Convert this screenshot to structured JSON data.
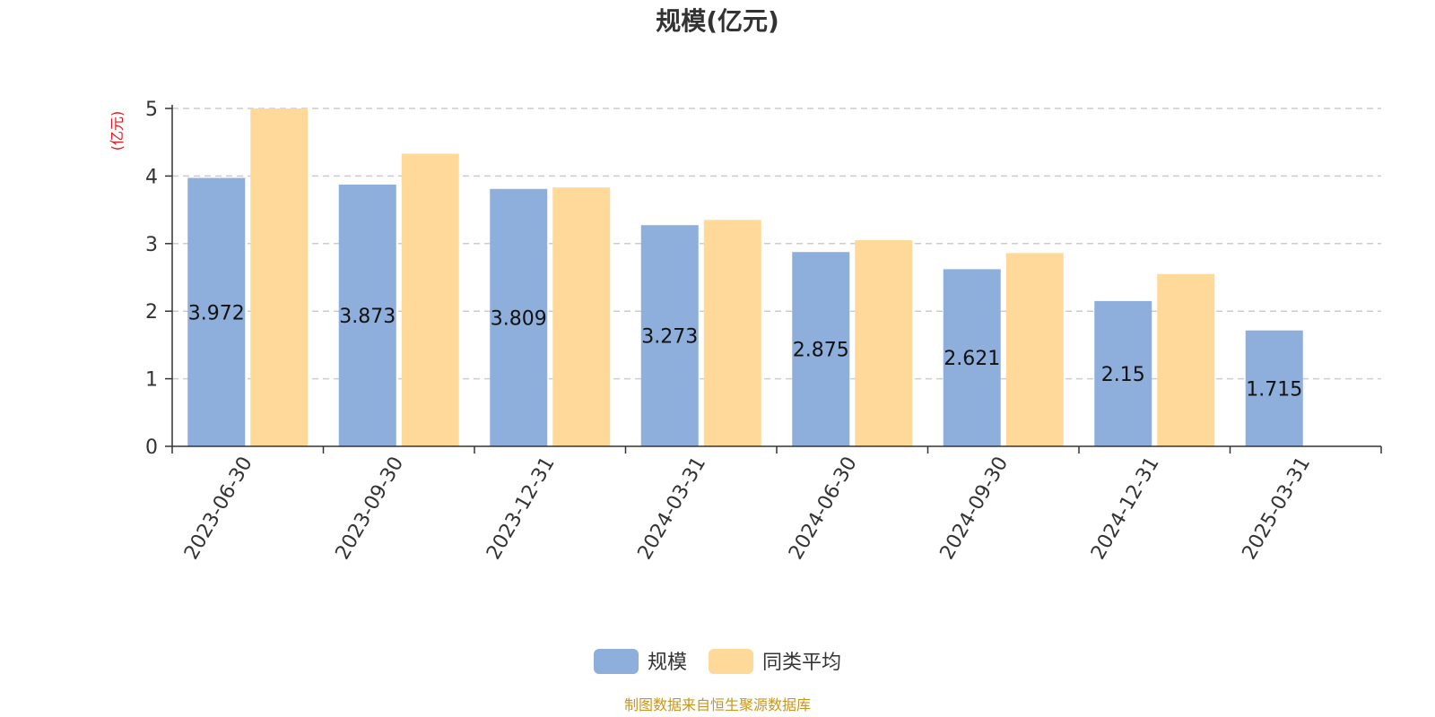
{
  "chart_data": {
    "type": "bar",
    "title": "规模(亿元)",
    "ylabel": "(亿元)",
    "categories": [
      "2023-06-30",
      "2023-09-30",
      "2023-12-31",
      "2024-03-31",
      "2024-06-30",
      "2024-09-30",
      "2024-12-31",
      "2025-03-31"
    ],
    "series": [
      {
        "name": "规模",
        "values": [
          3.972,
          3.873,
          3.809,
          3.273,
          2.875,
          2.621,
          2.15,
          1.715
        ],
        "data_labels": [
          "3.972",
          "3.873",
          "3.809",
          "3.273",
          "2.875",
          "2.621",
          "2.15",
          "1.715"
        ]
      },
      {
        "name": "同类平均",
        "values": [
          5.0,
          4.33,
          3.83,
          3.35,
          3.05,
          2.86,
          2.55,
          null
        ]
      }
    ],
    "ylim": [
      0,
      5
    ],
    "yticks": [
      "0",
      "1",
      "2",
      "3",
      "4",
      "5"
    ],
    "grid": true,
    "legend_position": "bottom-center"
  },
  "colors": {
    "series_1": "#8eaedb",
    "series_2": "#fed999",
    "unit": "#e8141b",
    "source": "#c8961e"
  },
  "source_note": "制图数据来自恒生聚源数据库"
}
